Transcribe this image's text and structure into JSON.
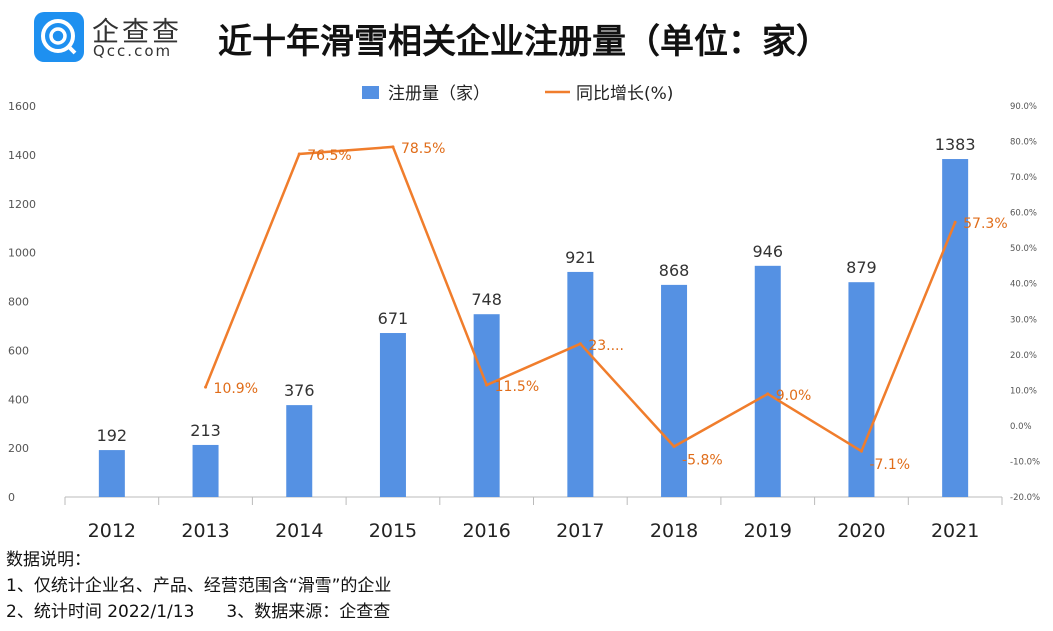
{
  "logo": {
    "name": "企查查",
    "domain": "Qcc.com"
  },
  "title": "近十年滑雪相关企业注册量（单位：家）",
  "notes": [
    "数据说明：",
    "1、仅统计企业名、产品、经营范围含“滑雪”的企业",
    "2、统计时间 2022/1/13",
    "3、数据来源：企查查"
  ],
  "chart_data": {
    "type": "bar+line",
    "title": "近十年滑雪相关企业注册量（单位：家）",
    "categories": [
      "2012",
      "2013",
      "2014",
      "2015",
      "2016",
      "2017",
      "2018",
      "2019",
      "2020",
      "2021"
    ],
    "series": [
      {
        "name": "注册量（家）",
        "type": "bar",
        "axis": "left",
        "color": "#5591e3",
        "values": [
          192,
          213,
          376,
          671,
          748,
          921,
          868,
          946,
          879,
          1383
        ],
        "labels": [
          "192",
          "213",
          "376",
          "671",
          "748",
          "921",
          "868",
          "946",
          "879",
          "1383"
        ]
      },
      {
        "name": "同比增长(%)",
        "type": "line",
        "axis": "right",
        "color": "#f07d2c",
        "values": [
          null,
          10.9,
          76.5,
          78.5,
          11.5,
          23.1,
          -5.8,
          9.0,
          -7.1,
          57.3
        ],
        "labels": [
          "",
          "10.9%",
          "76.5%",
          "78.5%",
          "11.5%",
          "23....",
          "-5.8%",
          "9.0%",
          "-7.1%",
          "57.3%"
        ]
      }
    ],
    "left_axis": {
      "ylim": [
        0,
        1600
      ],
      "ticks": [
        "0",
        "200",
        "400",
        "600",
        "800",
        "1000",
        "1200",
        "1400",
        "1600"
      ]
    },
    "right_axis": {
      "ylim": [
        -20,
        90
      ],
      "ticks": [
        "-20.0%",
        "-10.0%",
        "0.0%",
        "10.0%",
        "20.0%",
        "30.0%",
        "40.0%",
        "50.0%",
        "60.0%",
        "70.0%",
        "80.0%",
        "90.0%"
      ]
    },
    "legend": "top-center",
    "grid": false
  }
}
